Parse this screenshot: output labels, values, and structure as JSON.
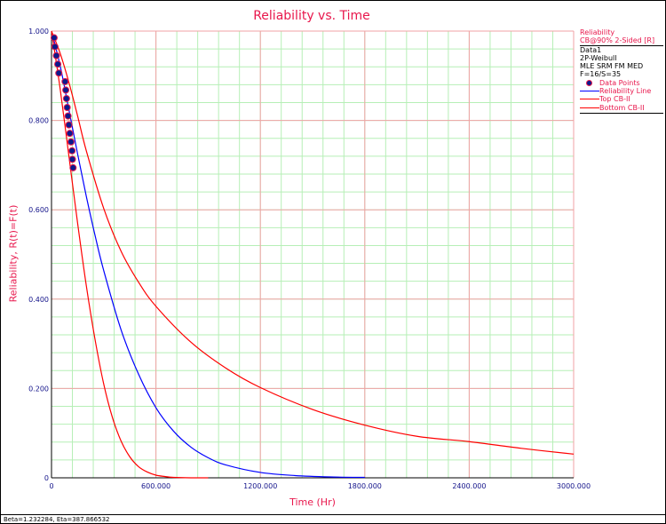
{
  "colors": {
    "accent": "#e8174c",
    "axis_text": "#13138a",
    "grid_major": "#f2a2a6",
    "grid_minor": "#b6efb6",
    "reliability_line": "#0000ff",
    "cb_lines": "#ff0000",
    "points": "#0b1a8c"
  },
  "chart_data": {
    "type": "line",
    "title": "Reliability vs. Time",
    "xlabel": "Time (Hr)",
    "ylabel": "Reliability, R(t)=F(t)",
    "xlim": [
      0,
      3000
    ],
    "ylim": [
      0,
      1
    ],
    "grid": true,
    "x_ticks": [
      {
        "value": 0,
        "label": "0"
      },
      {
        "value": 600,
        "label": "600.000"
      },
      {
        "value": 1200,
        "label": "1200.000"
      },
      {
        "value": 1800,
        "label": "1800.000"
      },
      {
        "value": 2400,
        "label": "2400.000"
      },
      {
        "value": 3000,
        "label": "3000.000"
      }
    ],
    "y_ticks": [
      {
        "value": 0,
        "label": "0"
      },
      {
        "value": 0.2,
        "label": "0.200"
      },
      {
        "value": 0.4,
        "label": "0.400"
      },
      {
        "value": 0.6,
        "label": "0.600"
      },
      {
        "value": 0.8,
        "label": "0.800"
      },
      {
        "value": 1.0,
        "label": "1.000"
      }
    ],
    "legend_position": "right",
    "series": [
      {
        "name": "Data Points",
        "kind": "scatter",
        "color": "#0b1a8c",
        "x": [
          15,
          20,
          28,
          36,
          42,
          78,
          82,
          86,
          90,
          95,
          100,
          105,
          112,
          118,
          120,
          124
        ],
        "y": [
          0.985,
          0.965,
          0.945,
          0.926,
          0.906,
          0.887,
          0.868,
          0.849,
          0.829,
          0.81,
          0.79,
          0.771,
          0.752,
          0.732,
          0.713,
          0.694
        ]
      },
      {
        "name": "Reliability Line",
        "kind": "line",
        "color": "#0000ff",
        "x": [
          0,
          50,
          100,
          150,
          200,
          250,
          300,
          400,
          500,
          600,
          700,
          800,
          900,
          1000,
          1200,
          1400,
          1600,
          1800
        ],
        "y": [
          1.0,
          0.922,
          0.824,
          0.725,
          0.63,
          0.543,
          0.464,
          0.331,
          0.232,
          0.157,
          0.105,
          0.069,
          0.045,
          0.029,
          0.012,
          0.005,
          0.002,
          0.001
        ]
      },
      {
        "name": "Top CB-II",
        "kind": "line",
        "color": "#ff0000",
        "x": [
          0,
          50,
          100,
          150,
          200,
          300,
          400,
          500,
          600,
          800,
          1000,
          1200,
          1500,
          1800,
          2100,
          2400,
          2700,
          3000
        ],
        "y": [
          1.0,
          0.95,
          0.885,
          0.81,
          0.732,
          0.603,
          0.507,
          0.438,
          0.384,
          0.304,
          0.246,
          0.202,
          0.153,
          0.118,
          0.093,
          0.081,
          0.066,
          0.053
        ]
      },
      {
        "name": "Bottom CB-II",
        "kind": "line",
        "color": "#ff0000",
        "x": [
          0,
          50,
          100,
          150,
          200,
          250,
          300,
          350,
          400,
          450,
          500,
          550,
          600,
          650,
          700,
          800,
          900
        ],
        "y": [
          1.0,
          0.87,
          0.72,
          0.57,
          0.43,
          0.31,
          0.21,
          0.135,
          0.082,
          0.047,
          0.025,
          0.013,
          0.006,
          0.003,
          0.001,
          0.0,
          0.0
        ]
      }
    ]
  },
  "legend": {
    "header": "Reliability",
    "cb_label": "CB@90% 2-Sided [R]",
    "dataset": "Data1",
    "model": "2P-Weibull",
    "method": "MLE SRM FM MED",
    "counts": "F=16/S=35",
    "items": [
      "Data Points",
      "Reliability Line",
      "Top CB-II",
      "Bottom CB-II"
    ]
  },
  "status_bar": "Beta=1.232284, Eta=387.866532"
}
